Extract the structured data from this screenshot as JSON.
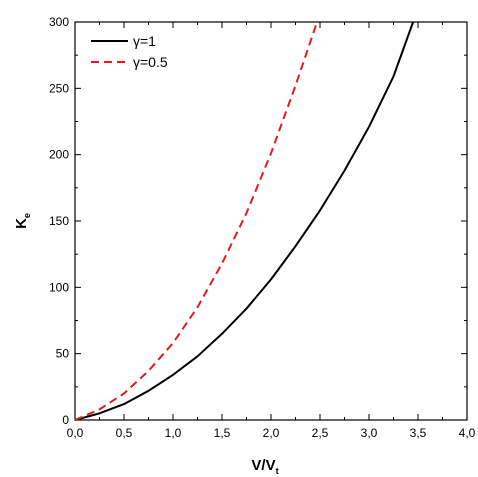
{
  "chart_data": {
    "type": "line",
    "title": "",
    "xlabel": "V/V",
    "xlabel_subscript": "t",
    "ylabel": "K",
    "ylabel_subscript": "e",
    "xlim": [
      0.0,
      4.0
    ],
    "ylim": [
      0,
      300
    ],
    "x_ticks": [
      "0,0",
      "0,5",
      "1,0",
      "1,5",
      "2,0",
      "2,5",
      "3,0",
      "3,5",
      "4,0"
    ],
    "y_ticks": [
      "0",
      "50",
      "100",
      "150",
      "200",
      "250",
      "300"
    ],
    "grid": false,
    "legend_position": "top-left",
    "series": [
      {
        "name": "γ=1",
        "color": "#000000",
        "dash": "solid",
        "x": [
          0.0,
          0.25,
          0.5,
          0.75,
          1.0,
          1.25,
          1.5,
          1.75,
          2.0,
          2.25,
          2.5,
          2.75,
          3.0,
          3.25,
          3.45
        ],
        "y": [
          0,
          5,
          12,
          22,
          34,
          48,
          65,
          84,
          106,
          131,
          158,
          188,
          221,
          259,
          300
        ]
      },
      {
        "name": "γ=0.5",
        "color": "#e41a1c",
        "dash": "dashed",
        "x": [
          0.0,
          0.25,
          0.5,
          0.75,
          1.0,
          1.25,
          1.5,
          1.75,
          2.0,
          2.25,
          2.47
        ],
        "y": [
          0,
          8,
          20,
          37,
          58,
          85,
          118,
          156,
          201,
          252,
          300
        ]
      }
    ]
  }
}
